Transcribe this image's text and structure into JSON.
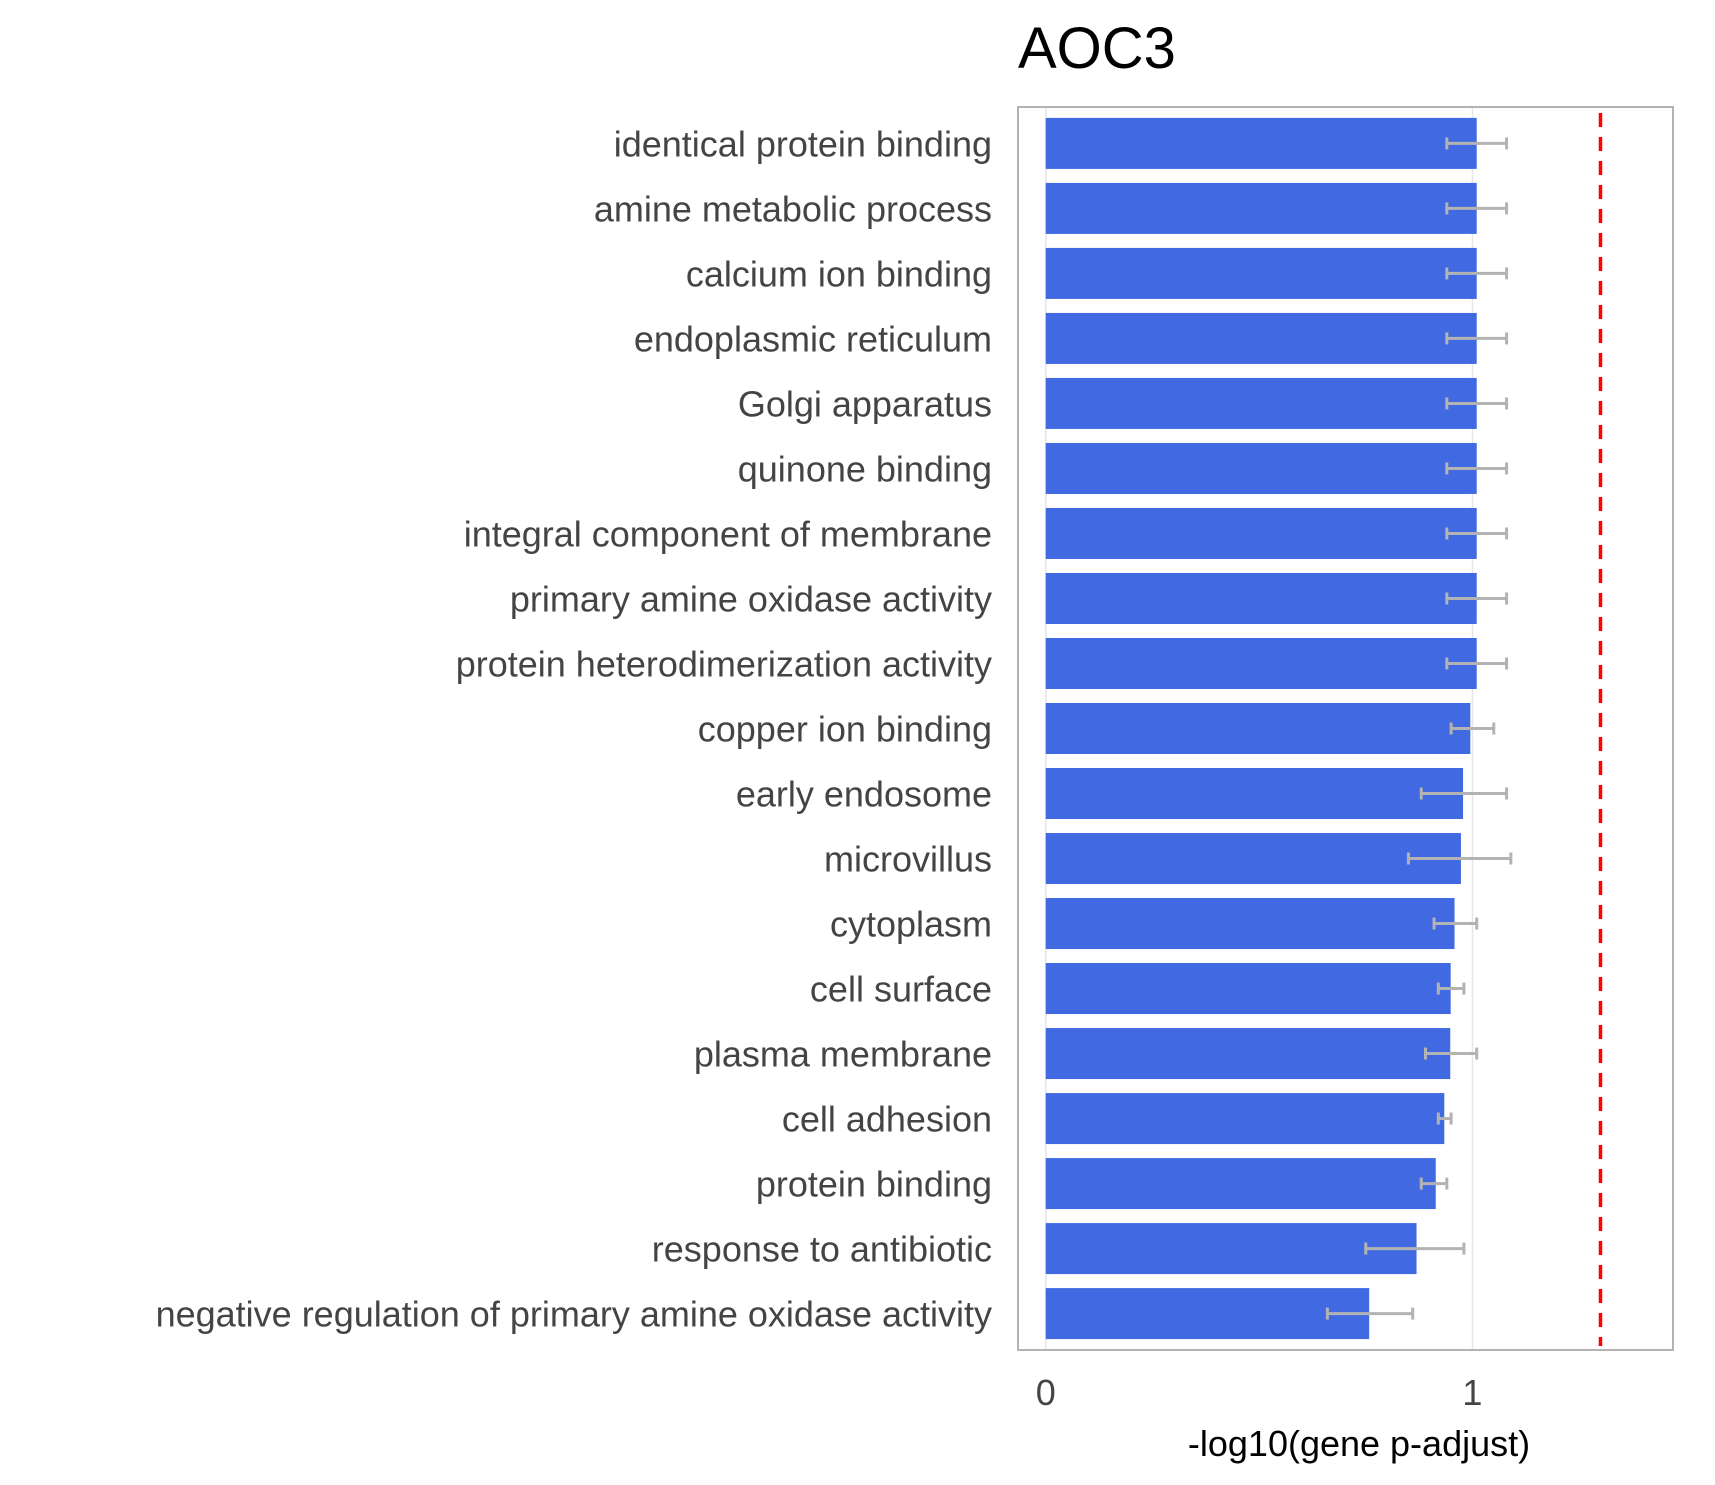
{
  "chart_data": {
    "type": "bar",
    "orientation": "horizontal",
    "title": "AOC3",
    "xlabel": "-log10(gene p-adjust)",
    "ylabel": "",
    "xlim": [
      -0.065,
      1.47
    ],
    "xticks": [
      0,
      1
    ],
    "grid": true,
    "legend": "none",
    "bar_color": "#4169e1",
    "errorbar_color": "#b3b3b3",
    "threshold": {
      "value": 1.3,
      "style": "dashed",
      "color": "#ff0000"
    },
    "categories": [
      "identical protein binding",
      "amine metabolic process",
      "calcium ion binding",
      "endoplasmic reticulum",
      "Golgi apparatus",
      "quinone binding",
      "integral component of membrane",
      "primary amine oxidase activity",
      "protein heterodimerization activity",
      "copper ion binding",
      "early endosome",
      "microvillus",
      "cytoplasm",
      "cell surface",
      "plasma membrane",
      "cell adhesion",
      "protein binding",
      "response to antibiotic",
      "negative regulation of primary amine oxidase activity"
    ],
    "values": [
      1.01,
      1.01,
      1.01,
      1.01,
      1.01,
      1.01,
      1.01,
      1.01,
      1.01,
      0.995,
      0.978,
      0.973,
      0.958,
      0.949,
      0.948,
      0.934,
      0.914,
      0.869,
      0.758
    ],
    "error_low": [
      0.94,
      0.94,
      0.94,
      0.94,
      0.94,
      0.94,
      0.94,
      0.94,
      0.94,
      0.95,
      0.88,
      0.85,
      0.91,
      0.92,
      0.89,
      0.92,
      0.88,
      0.75,
      0.66
    ],
    "error_high": [
      1.08,
      1.08,
      1.08,
      1.08,
      1.08,
      1.08,
      1.08,
      1.08,
      1.08,
      1.05,
      1.08,
      1.09,
      1.01,
      0.98,
      1.01,
      0.95,
      0.94,
      0.98,
      0.86
    ]
  }
}
